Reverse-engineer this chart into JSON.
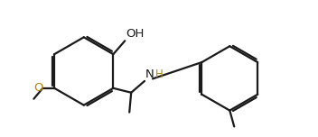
{
  "bg_color": "#ffffff",
  "line_color": "#1a1a1a",
  "lw": 1.6,
  "nh_color": "#b8860b",
  "o_color": "#b8860b",
  "figsize": [
    3.52,
    1.52
  ],
  "dpi": 100,
  "xlim": [
    0,
    3.52
  ],
  "ylim": [
    0,
    1.52
  ]
}
